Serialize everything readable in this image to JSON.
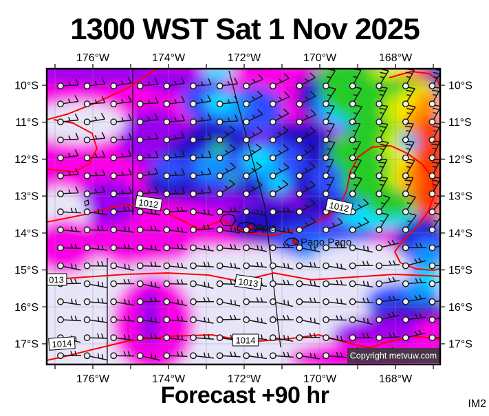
{
  "title": "1300 WST Sat 1 Nov 2025",
  "axes": {
    "longitude_labels": [
      "176°W",
      "174°W",
      "172°W",
      "170°W",
      "168°W"
    ],
    "latitude_labels": [
      "10°S",
      "11°S",
      "12°S",
      "13°S",
      "14°S",
      "15°S",
      "16°S",
      "17°S"
    ]
  },
  "map_content": {
    "copyright": "Copyright metvuw.com",
    "places": [
      {
        "name": "Apia"
      },
      {
        "name": "Pago Pago"
      }
    ],
    "isobar_labels": [
      {
        "text": "1012"
      },
      {
        "text": "1012"
      },
      {
        "text": "013"
      },
      {
        "text": "1013"
      },
      {
        "text": "1014"
      },
      {
        "text": "1014"
      }
    ]
  },
  "footer": {
    "forecast_label": "Forecast +90 hr",
    "model_tag": "IM2"
  },
  "palette": {
    "no_rain": "#E7E5F7",
    "rain_1_magenta": "#FA00E6",
    "rain_2_purple": "#9A00F0",
    "rain_3_navy": "#2408C8",
    "rain_4_blue": "#2E4EFF",
    "rain_5_lightblue": "#0795FF",
    "rain_6_cyan": "#00E4FF",
    "rain_7_green": "#28CC28",
    "rain_8_yellowgreen": "#AEEA00",
    "rain_9_yellow": "#FFE900",
    "rain_10_orange": "#FF9100",
    "rain_11_red": "#FF3A00",
    "isobar_line": "#FF0000",
    "place_marker": "#E60000",
    "boundary_line": "#111111"
  }
}
